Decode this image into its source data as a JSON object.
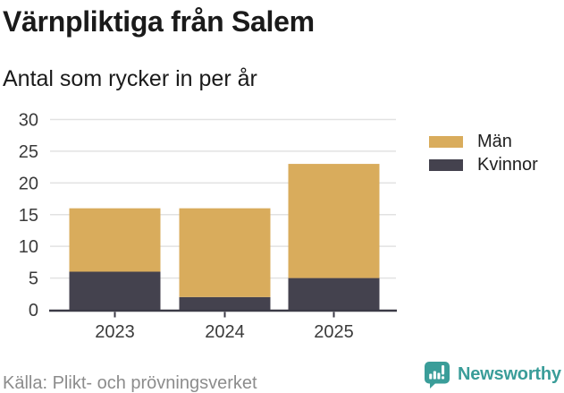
{
  "header": {
    "title": "Värnpliktiga från Salem",
    "subtitle": "Antal som rycker in per år"
  },
  "chart_data": {
    "type": "bar",
    "stacked": true,
    "categories": [
      "2023",
      "2024",
      "2025"
    ],
    "series": [
      {
        "name": "Kvinnor",
        "color": "#44424E",
        "values": [
          6,
          2,
          5
        ]
      },
      {
        "name": "Män",
        "color": "#D9AC5C",
        "values": [
          10,
          14,
          18
        ]
      }
    ],
    "stack_totals": [
      16,
      16,
      23
    ],
    "title": "Värnpliktiga från Salem",
    "subtitle": "Antal som rycker in per år",
    "xlabel": "",
    "ylabel": "",
    "ylim": [
      0,
      30
    ],
    "yticks": [
      0,
      5,
      10,
      15,
      20,
      25,
      30
    ],
    "grid": true,
    "legend_position": "right",
    "legend_order": [
      "Män",
      "Kvinnor"
    ]
  },
  "legend": {
    "items": [
      {
        "label": "Män",
        "color": "#D9AC5C"
      },
      {
        "label": "Kvinnor",
        "color": "#44424E"
      }
    ]
  },
  "footer": {
    "source": "Källa: Plikt- och prövningsverket",
    "brand": "Newsworthy"
  },
  "icons": {
    "brand_icon": "bar-chart-speech-bubble"
  },
  "colors": {
    "background": "#FFFFFF",
    "grid": "#E2E2E2",
    "axis": "#3B3A46",
    "tick_label": "#3B3B3B",
    "title": "#1A1A1A",
    "source": "#8C8C8C",
    "brand_teal": "#3A9D99",
    "man": "#D9AC5C",
    "kvinnor": "#44424E"
  }
}
